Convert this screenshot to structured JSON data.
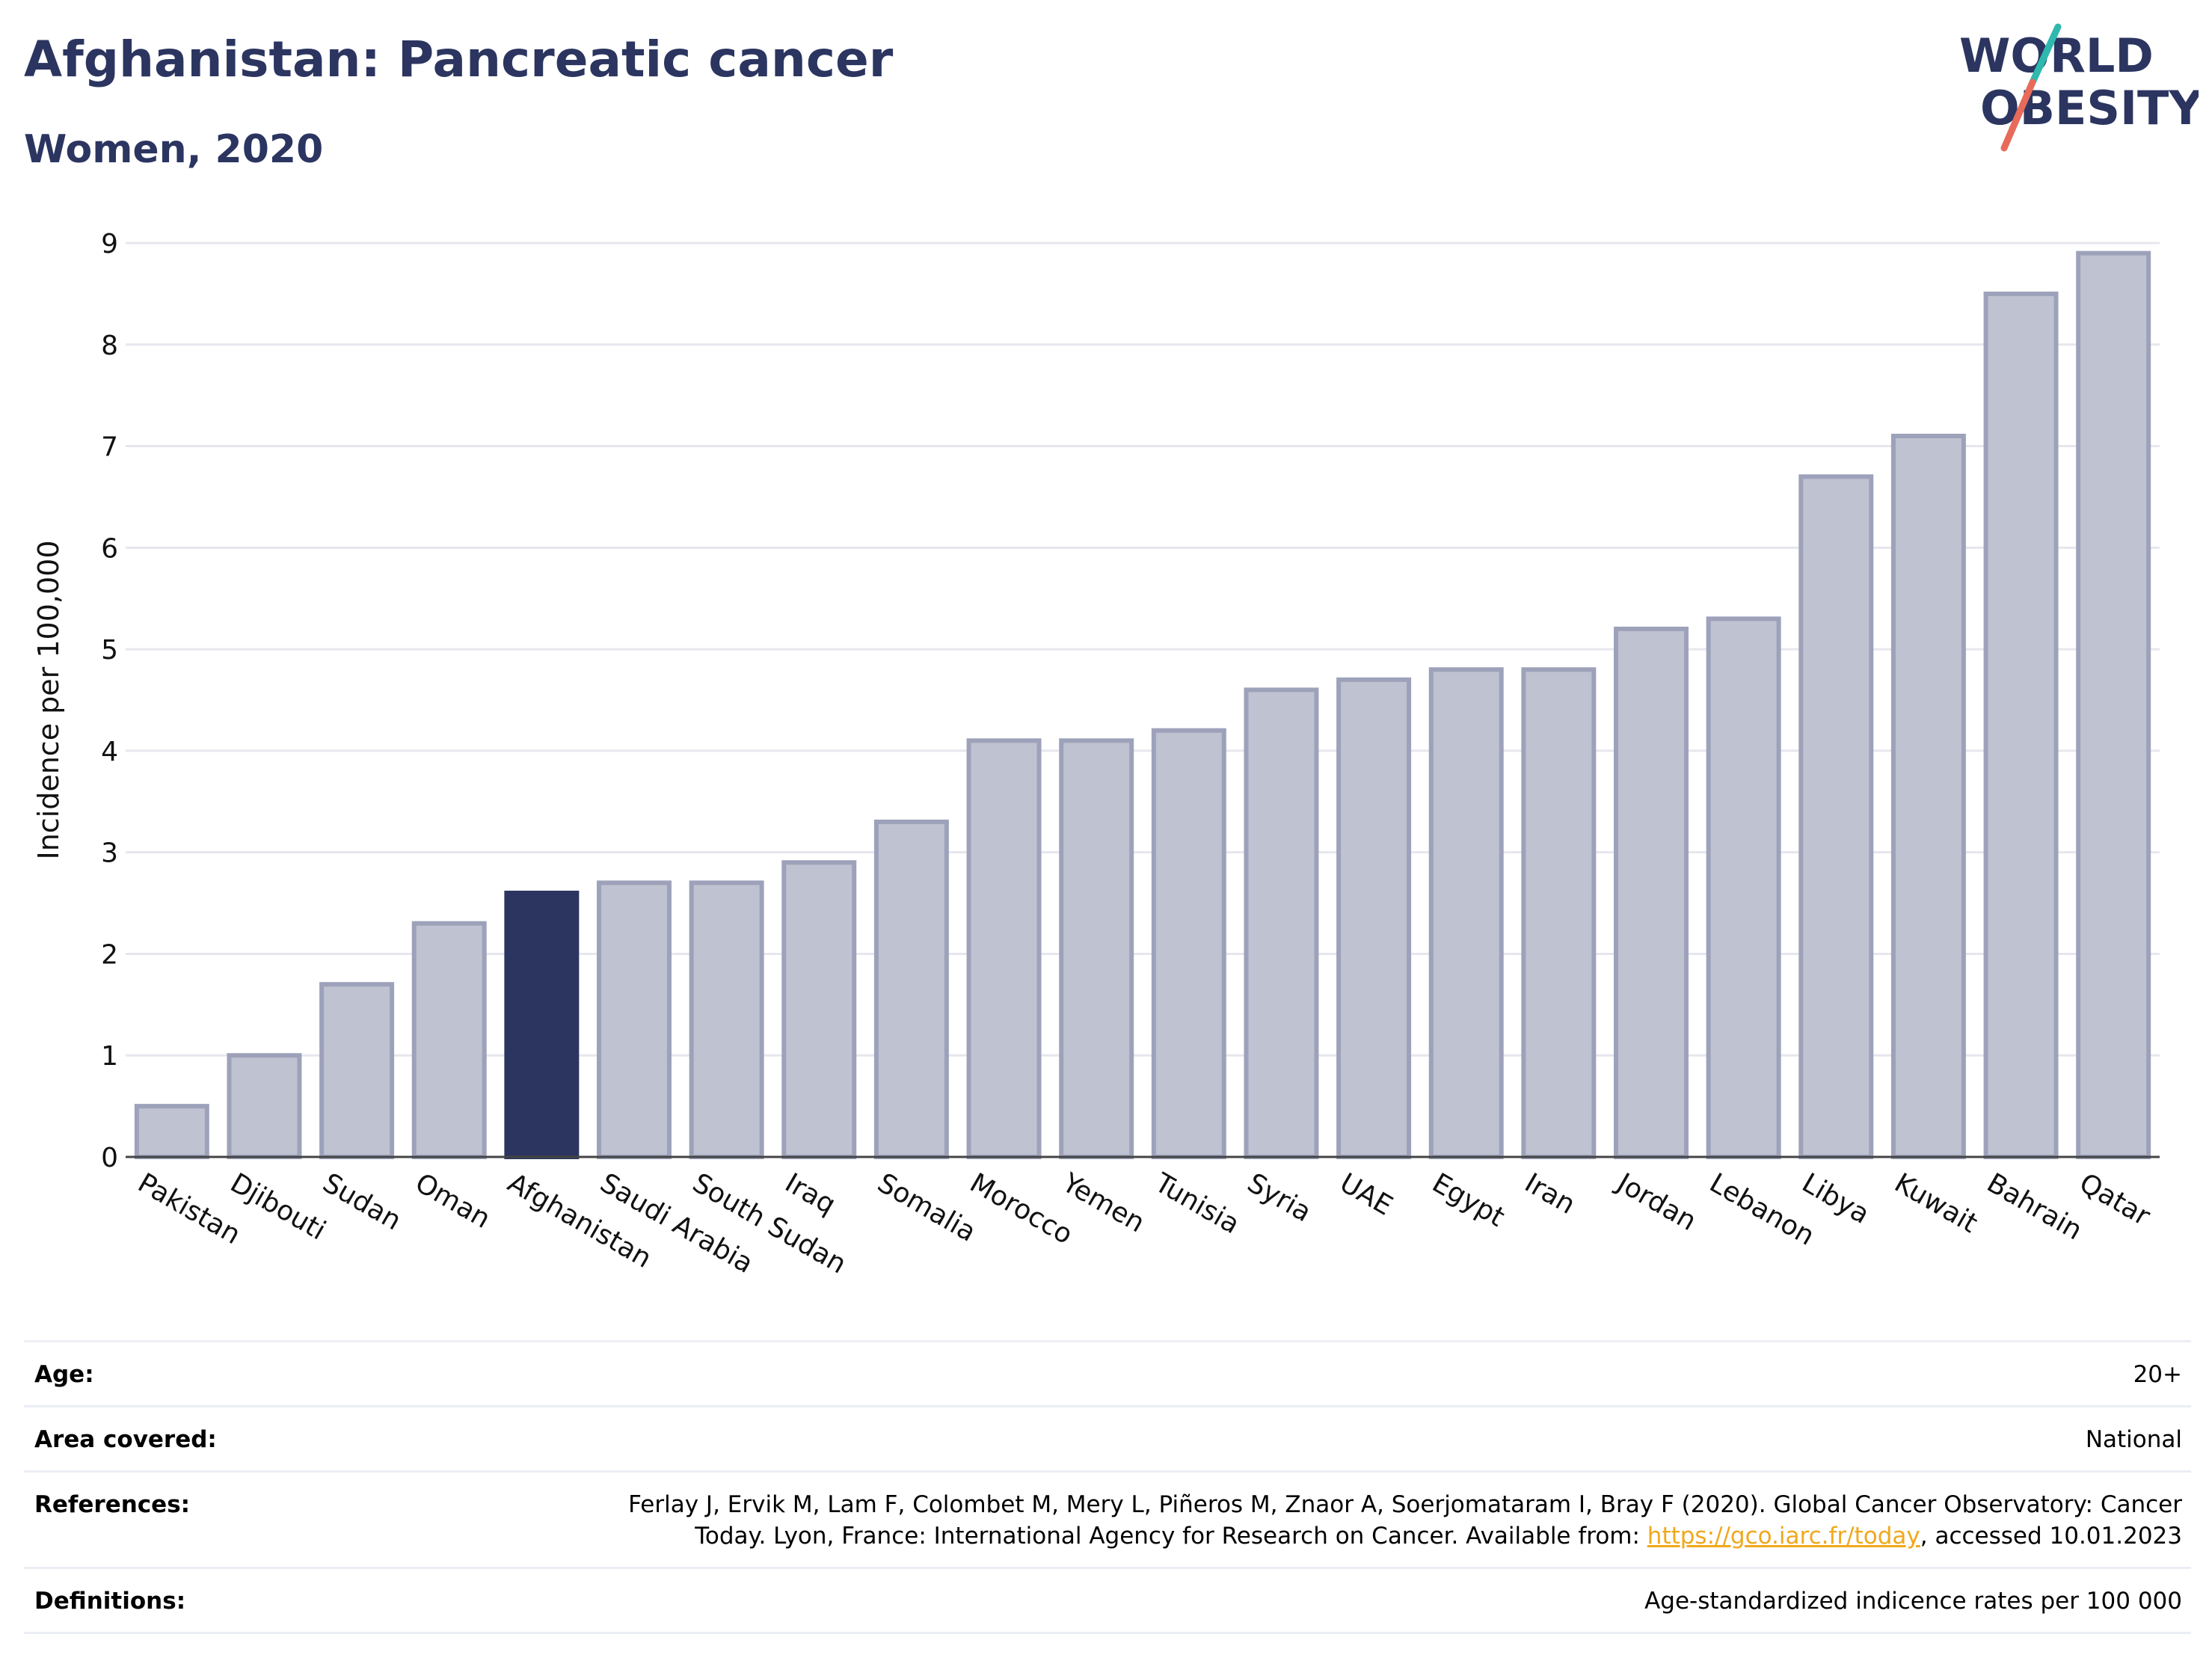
{
  "header": {
    "title": "Afghanistan: Pancreatic cancer",
    "subtitle": "Women, 2020"
  },
  "logo": {
    "line1": "WORLD",
    "line2": "OBESITY",
    "text_color": "#2b3560",
    "slash_colors": [
      "#2fb8ad",
      "#e86a5a"
    ]
  },
  "chart_data": {
    "type": "bar",
    "ylabel": "Incidence per 100,000",
    "ylim": [
      0,
      9
    ],
    "yticks": [
      0,
      1,
      2,
      3,
      4,
      5,
      6,
      7,
      8,
      9
    ],
    "grid": true,
    "highlight": "Afghanistan",
    "highlight_color": "#2b3560",
    "bar_color": "#bfc2d0",
    "bar_edge_color": "#9da2ba",
    "categories": [
      "Pakistan",
      "Djibouti",
      "Sudan",
      "Oman",
      "Afghanistan",
      "Saudi Arabia",
      "South Sudan",
      "Iraq",
      "Somalia",
      "Morocco",
      "Yemen",
      "Tunisia",
      "Syria",
      "UAE",
      "Egypt",
      "Iran",
      "Jordan",
      "Lebanon",
      "Libya",
      "Kuwait",
      "Bahrain",
      "Qatar"
    ],
    "values": [
      0.5,
      1.0,
      1.7,
      2.3,
      2.6,
      2.7,
      2.7,
      2.9,
      3.3,
      4.1,
      4.1,
      4.2,
      4.6,
      4.7,
      4.8,
      4.8,
      5.2,
      5.3,
      6.7,
      7.1,
      8.5,
      8.9
    ]
  },
  "meta": {
    "age_label": "Age:",
    "age_value": "20+",
    "area_label": "Area covered:",
    "area_value": "National",
    "references_label": "References:",
    "references_text_before": "Ferlay J, Ervik M, Lam F, Colombet M, Mery L, Piñeros M, Znaor A, Soerjomataram I, Bray F (2020). Global Cancer Observatory: Cancer Today. Lyon, France: International Agency for Research on Cancer. Available from: ",
    "references_link": "https://gco.iarc.fr/today",
    "references_text_after": ", accessed 10.01.2023",
    "definitions_label": "Definitions:",
    "definitions_value": "Age-standardized indicence rates per 100 000"
  }
}
